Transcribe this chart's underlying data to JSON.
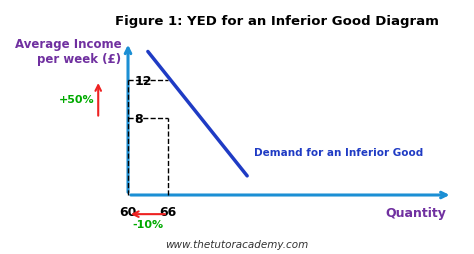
{
  "title": "Figure 1: YED for an Inferior Good Diagram",
  "ylabel": "Average Income\nper week (£)",
  "xlabel": "Quantity",
  "demand_label": "Demand for an Inferior Good",
  "demand_line_x": [
    63,
    78
  ],
  "demand_line_y": [
    15,
    2
  ],
  "ytick_vals": [
    8,
    12
  ],
  "ytick_labels": [
    "8",
    "12"
  ],
  "xtick_vals": [
    60,
    66
  ],
  "xtick_labels": [
    "60",
    "66"
  ],
  "plus50_text": "+50%",
  "minus10_text": "-10%",
  "xlim": [
    55,
    110
  ],
  "ylim": [
    -3,
    17
  ],
  "yaxis_x": 60,
  "xaxis_y": 0,
  "title_color": "#000000",
  "ylabel_color": "#7030A0",
  "xlabel_color": "#7030A0",
  "demand_line_color": "#1F3BC4",
  "axis_color": "#1B8FD4",
  "dashed_color": "#000000",
  "plus50_color": "#00AA00",
  "minus10_color": "#00AA00",
  "arrow_color": "#EE2222",
  "website": "www.thetutoracademy.com",
  "website_color": "#333333",
  "tick_label_color": "#000000",
  "background_color": "#FFFFFF"
}
